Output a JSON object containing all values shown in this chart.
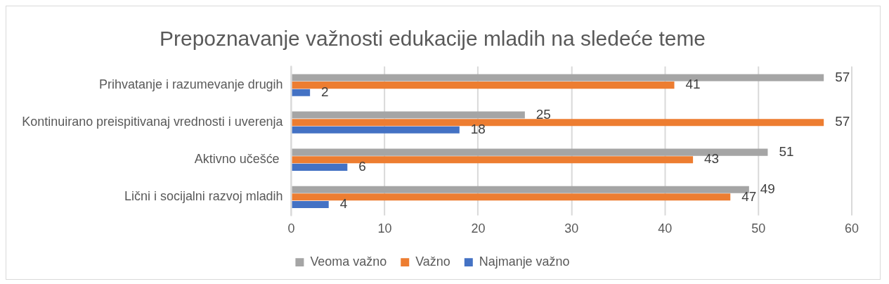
{
  "chart_data": {
    "type": "bar",
    "orientation": "horizontal",
    "title": "Prepoznavanje važnosti edukacije mladih na sledeće teme",
    "categories": [
      "Prihvatanje i razumevanje drugih",
      "Kontinuirano preispitivanaj vrednosti i uverenja",
      "Aktivno učešće ",
      "Lični i socijalni razvoj mladih"
    ],
    "series": [
      {
        "name": "Veoma važno",
        "color": "#a5a5a5",
        "values": [
          57,
          25,
          51,
          49
        ]
      },
      {
        "name": "Važno",
        "color": "#ed7d31",
        "values": [
          41,
          57,
          43,
          47
        ]
      },
      {
        "name": "Najmanje važno",
        "color": "#4472c4",
        "values": [
          2,
          18,
          6,
          4
        ]
      }
    ],
    "xlim": [
      0,
      60
    ],
    "xticks": [
      0,
      10,
      20,
      30,
      40,
      50,
      60
    ],
    "grid": "x",
    "legend": "bottom",
    "data_labels": true
  }
}
